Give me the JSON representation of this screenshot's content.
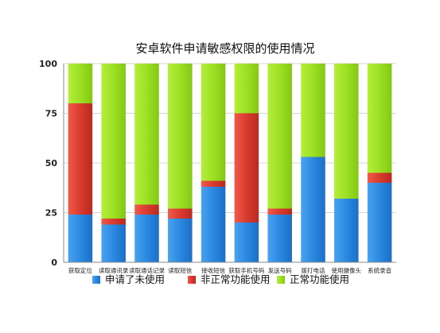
{
  "chart_data": {
    "type": "bar",
    "stacked": true,
    "title": "安卓软件申请敏感权限的使用情况",
    "xlabel": "",
    "ylabel": "",
    "ylim": [
      0,
      100
    ],
    "yticks": [
      "0",
      "25",
      "50",
      "75",
      "100"
    ],
    "grid": true,
    "legend_position": "bottom",
    "categories": [
      "获取定位",
      "读取通讯录",
      "读取通话记录",
      "读取短信",
      "接收短信",
      "获取手机号码",
      "发送号码",
      "拨打电话",
      "使用摄像头",
      "系统录音"
    ],
    "series": [
      {
        "name": "申请了未使用",
        "color": "#2a88e0",
        "values": [
          24,
          19,
          24,
          22,
          38,
          20,
          24,
          53,
          32,
          40
        ]
      },
      {
        "name": "非正常功能使用",
        "color": "#d93a2e",
        "values": [
          56,
          3,
          5,
          5,
          3,
          55,
          3,
          0,
          0,
          5
        ]
      },
      {
        "name": "正常功能使用",
        "color": "#9ce024",
        "values": [
          20,
          78,
          71,
          73,
          59,
          25,
          73,
          47,
          68,
          55
        ]
      }
    ]
  }
}
